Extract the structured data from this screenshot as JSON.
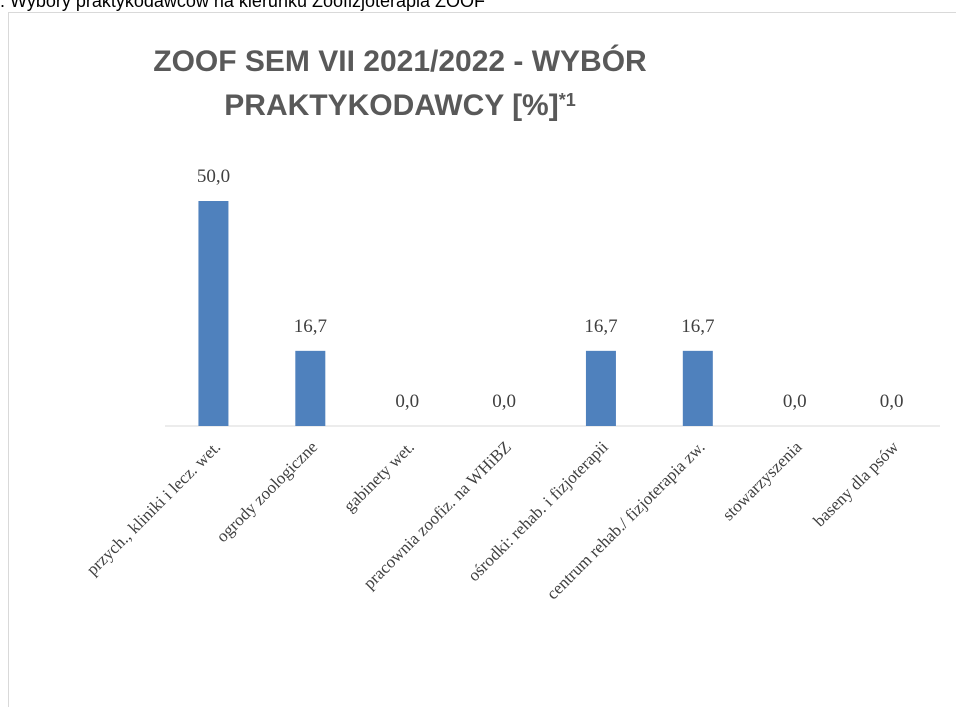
{
  "caption": ". Wybory praktykodawców na kierunku Zoofizjoterapia ZOOF",
  "chart_data": {
    "type": "bar",
    "title": "ZOOF SEM VII 2021/2022 - WYBÓR PRAKTYKODAWCY [%]",
    "title_note": "*1",
    "categories": [
      "przych., kliniki i lecz. wet.",
      "ogrody zoologiczne",
      "gabinety wet.",
      "pracownia zoofiz. na WHiBZ",
      "ośrodki: rehab. i fizjoterapii",
      "centrum rehab./ fizjoterapia zw.",
      "stowarzyszenia",
      "baseny dla psów"
    ],
    "values": [
      50.0,
      16.7,
      0.0,
      0.0,
      16.7,
      16.7,
      0.0,
      0.0
    ],
    "value_labels": [
      "50,0",
      "16,7",
      "0,0",
      "0,0",
      "16,7",
      "16,7",
      "0,0",
      "0,0"
    ],
    "color": "#4f81bd"
  }
}
